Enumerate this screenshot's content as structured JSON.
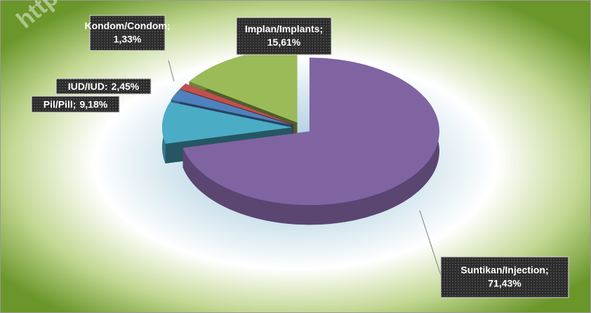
{
  "watermark": "https.",
  "chart_data": {
    "type": "pie3d",
    "categories": [
      "Suntikan/Injection;",
      "Pil/Pill;",
      "IUD/IUD:",
      "Kondom/Condom;",
      "Implan/Implants;"
    ],
    "values": [
      71.43,
      9.18,
      2.45,
      1.33,
      15.61
    ],
    "value_labels": [
      "71,43%",
      "9,18%",
      "2,45%",
      "1,33%",
      "15,61%"
    ],
    "colors": [
      "#8064a2",
      "#4bacc6",
      "#4f81bd",
      "#c0504d",
      "#9bbb59"
    ]
  }
}
